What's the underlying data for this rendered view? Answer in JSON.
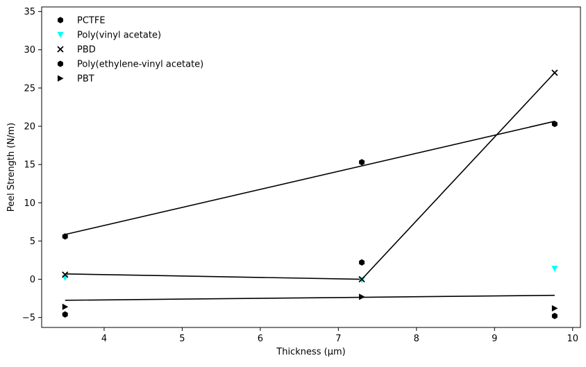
{
  "chart_data": {
    "type": "scatter",
    "title": "",
    "xlabel": "Thickness (µm)",
    "ylabel": "Peel Strength (N/m)",
    "xlim": [
      3.2,
      10.1
    ],
    "ylim": [
      -6.3,
      35.6
    ],
    "xticks": [
      4,
      5,
      6,
      7,
      8,
      9,
      10
    ],
    "yticks": [
      -5,
      0,
      5,
      10,
      15,
      20,
      25,
      30,
      35
    ],
    "grid": false,
    "legend_position": "top-left",
    "series": [
      {
        "name": "PCTFE",
        "marker": "hexagon",
        "color": "#000000",
        "x": [
          3.5,
          7.3,
          9.77
        ],
        "y": [
          5.6,
          15.3,
          20.3
        ],
        "fit_line": {
          "x": [
            3.5,
            9.77
          ],
          "y": [
            5.85,
            20.65
          ]
        }
      },
      {
        "name": "Poly(vinyl acetate)",
        "marker": "triangle-down",
        "color": "#00ffff",
        "x": [
          3.5,
          7.3,
          9.77
        ],
        "y": [
          0.2,
          -0.1,
          1.4
        ]
      },
      {
        "name": "PBD",
        "marker": "x",
        "color": "#000000",
        "x": [
          3.5,
          7.3,
          9.77
        ],
        "y": [
          0.6,
          0.0,
          27.0
        ],
        "fit_line": {
          "x": [
            3.5,
            7.3,
            9.77
          ],
          "y": [
            0.7,
            0.0,
            27.0
          ]
        }
      },
      {
        "name": "Poly(ethylene-vinyl acetate)",
        "marker": "hexagon",
        "color": "#000000",
        "x": [
          3.5,
          7.3,
          9.77
        ],
        "y": [
          -4.6,
          2.2,
          -4.8
        ]
      },
      {
        "name": "PBT",
        "marker": "triangle-right",
        "color": "#000000",
        "x": [
          3.5,
          7.3,
          9.77
        ],
        "y": [
          -3.6,
          -2.3,
          -3.8
        ],
        "fit_line": {
          "x": [
            3.5,
            9.77
          ],
          "y": [
            -2.75,
            -2.1
          ]
        }
      }
    ]
  }
}
